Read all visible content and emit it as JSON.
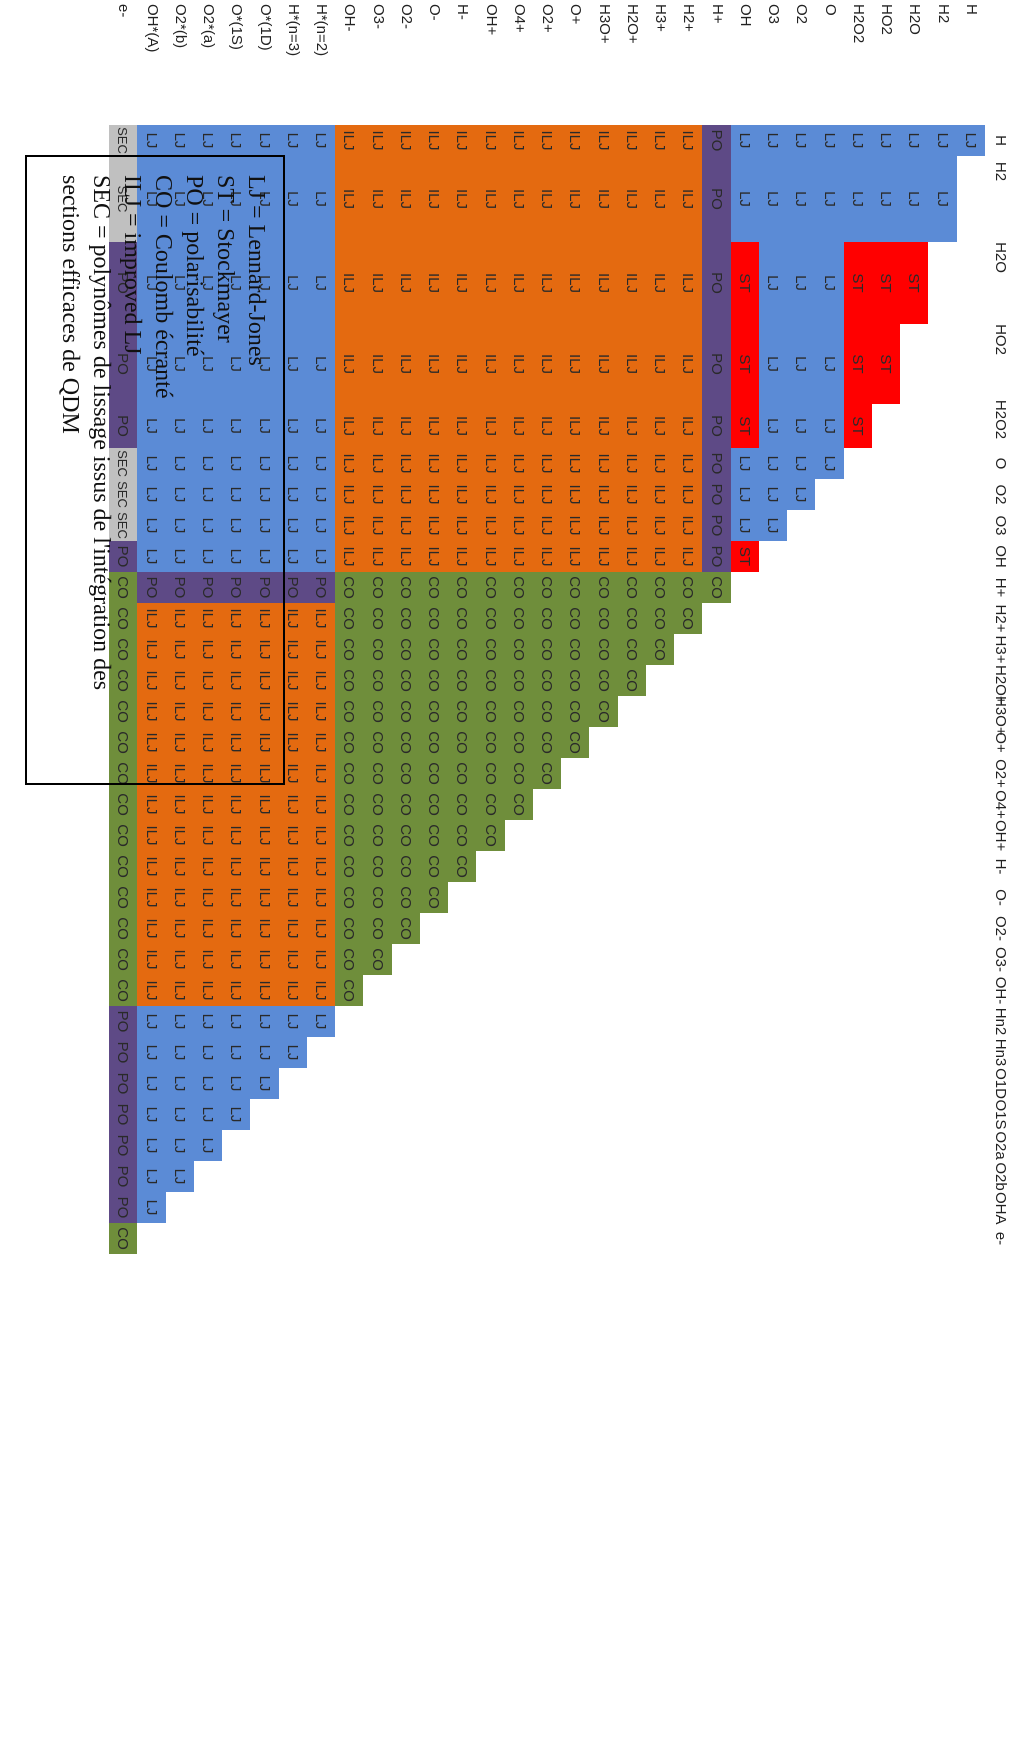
{
  "species_rows": [
    "H",
    "H2",
    "H2O",
    "HO2",
    "H2O2",
    "O",
    "O2",
    "O3",
    "OH",
    "H+",
    "H2+",
    "H3+",
    "H2O+",
    "H3O+",
    "O+",
    "O2+",
    "O4+",
    "OH+",
    "H-",
    "O-",
    "O2-",
    "O3-",
    "OH-",
    "H*(n=2)",
    "H*(n=3)",
    "O*(1D)",
    "O*(1S)",
    "O2*(a)",
    "O2*(b)",
    "OH*(A)",
    "e-"
  ],
  "species_cols": [
    "H",
    "H2",
    "H2O",
    "HO2",
    "H2O2",
    "O",
    "O2",
    "O3",
    "OH",
    "H+",
    "H2+",
    "H3+",
    "H2O+",
    "H3O+",
    "O+",
    "O2+",
    "O4+",
    "OH+",
    "H-",
    "O-",
    "O2-",
    "O3-",
    "OH-",
    "Hn2",
    "Hn3",
    "O1D",
    "O1S",
    "O2a",
    "O2b",
    "OHA",
    "e-"
  ],
  "codes": {
    "LJ": "LJ",
    "ST": "ST",
    "PO": "PO",
    "CO": "CO",
    "ILJ": "ILJ",
    "SEC": "SEC"
  },
  "colors": {
    "LJ": "#5b8bd6",
    "ST": "#ff0000",
    "PO": "#5e4a86",
    "CO": "#6f8e3b",
    "ILJ": "#e46a10",
    "SEC": "#c0c0c0"
  },
  "st_pairs": [
    [
      "H2O",
      "H2O"
    ],
    [
      "H2O",
      "HO2"
    ],
    [
      "H2O",
      "H2O2"
    ],
    [
      "H2O",
      "OH"
    ],
    [
      "HO2",
      "HO2"
    ],
    [
      "HO2",
      "H2O2"
    ],
    [
      "HO2",
      "OH"
    ],
    [
      "H2O2",
      "H2O2"
    ],
    [
      "H2O2",
      "OH"
    ],
    [
      "OH",
      "OH"
    ]
  ],
  "legend": {
    "line1": "LJ = Lennard-Jones",
    "line2": "ST = Stockmayer",
    "line3": "PO = polarisabilité",
    "line4": "CO =  Coulomb écranté",
    "line5": "ILJ = improved LJ",
    "line6": "SEC = polynômes de lissage issus de l'intégration des sections efficaces de QDM"
  }
}
